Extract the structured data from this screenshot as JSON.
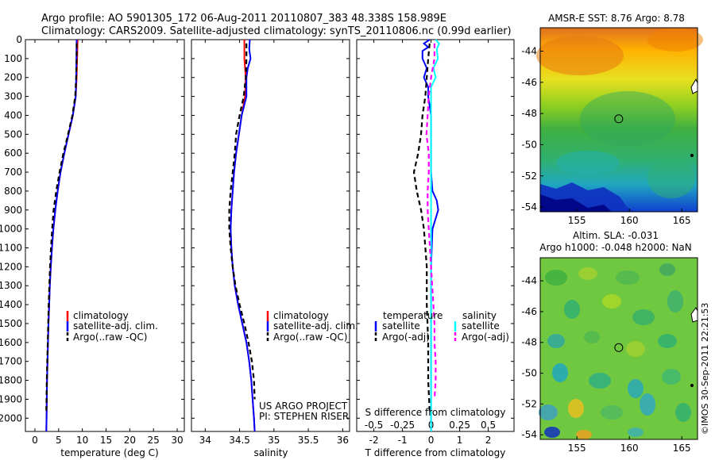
{
  "header": {
    "line1": "Argo profile: AO 5901305_172 06-Aug-2011 20110807_383 48.338S 158.989E",
    "line2": "Climatology: CARS2009. Satellite-adjusted climatology: synTS_20110806.nc (0.99d earlier)"
  },
  "footer": {
    "project": "US ARGO PROJECT",
    "pi": "PI: STEPHEN RISER",
    "credit": "©IMOS 30-Sep-2011 22:21:53"
  },
  "colors": {
    "climatology": "#ff0000",
    "satellite": "#0000ff",
    "argo": "#000000",
    "salinity_satellite": "#00ffff",
    "salinity_argo": "#ff00ff",
    "map_marker": "#000000"
  },
  "maps": [
    {
      "title": "AMSR-E SST: 8.76 Argo: 8.78",
      "title_line2": "",
      "y_ticks": [
        -44,
        -46,
        -48,
        -50,
        -52,
        -54
      ],
      "x_ticks": [
        155,
        160,
        165
      ],
      "lat_range": [
        -54.3,
        -42.5
      ],
      "lon_range": [
        151.5,
        166.5
      ],
      "argo_position": {
        "lon": 158.989,
        "lat": -48.338
      }
    },
    {
      "title": "Altim. SLA: -0.031",
      "title_line2": "Argo h1000: -0.048 h2000: NaN",
      "y_ticks": [
        -44,
        -46,
        -48,
        -50,
        -52,
        -54
      ],
      "x_ticks": [
        155,
        160,
        165
      ],
      "lat_range": [
        -54.3,
        -42.5
      ],
      "lon_range": [
        151.5,
        166.5
      ],
      "argo_position": {
        "lon": 158.989,
        "lat": -48.338
      }
    }
  ],
  "chart_data": [
    {
      "type": "line",
      "panel": "temperature",
      "xlabel": "temperature (deg C)",
      "ylabel": "",
      "xlim": [
        -2,
        31.5
      ],
      "ylim": [
        2070,
        0
      ],
      "x_ticks": [
        0,
        5,
        10,
        15,
        20,
        25,
        30
      ],
      "x_tick_labels": [
        "0",
        "5",
        "10",
        "15",
        "20",
        "25",
        "30"
      ],
      "y_ticks": [
        0,
        100,
        200,
        300,
        400,
        500,
        600,
        700,
        800,
        900,
        1000,
        1100,
        1200,
        1300,
        1400,
        1500,
        1600,
        1700,
        1800,
        1900,
        2000
      ],
      "y_tick_labels": [
        "0",
        "100",
        "200",
        "300",
        "400",
        "500",
        "600",
        "700",
        "800",
        "900",
        "1000",
        "1100",
        "1200",
        "1300",
        "1400",
        "1500",
        "1600",
        "1700",
        "1800",
        "1900",
        "2000"
      ],
      "legend": [
        "climatology",
        "satellite-adj. clim.",
        "Argo(..raw -QC)"
      ],
      "series": [
        {
          "name": "climatology",
          "color": "#ff0000",
          "dash": "solid",
          "depth": [
            0,
            100,
            200,
            300,
            400,
            500,
            600,
            700,
            800,
            900,
            1000,
            1100,
            1200,
            1300,
            1400,
            1500,
            1600,
            1700,
            1800,
            1900,
            2000,
            2070
          ],
          "values": [
            9.0,
            8.9,
            8.8,
            8.6,
            8.0,
            7.1,
            6.2,
            5.4,
            4.8,
            4.3,
            3.9,
            3.6,
            3.35,
            3.15,
            3.0,
            2.85,
            2.75,
            2.65,
            2.55,
            2.5,
            2.45,
            2.4
          ]
        },
        {
          "name": "satellite-adj. clim.",
          "color": "#0000ff",
          "dash": "solid",
          "depth": [
            0,
            100,
            200,
            300,
            400,
            500,
            600,
            700,
            800,
            900,
            1000,
            1100,
            1200,
            1300,
            1400,
            1500,
            1600,
            1700,
            1800,
            1900,
            2000,
            2070
          ],
          "values": [
            8.8,
            8.75,
            8.7,
            8.6,
            8.0,
            7.1,
            6.2,
            5.4,
            4.8,
            4.3,
            3.9,
            3.6,
            3.35,
            3.15,
            3.0,
            2.85,
            2.75,
            2.65,
            2.55,
            2.5,
            2.45,
            2.4
          ]
        },
        {
          "name": "Argo(..raw -QC)",
          "color": "#000000",
          "dash": "dashed",
          "depth": [
            20,
            100,
            200,
            300,
            400,
            500,
            600,
            700,
            800,
            900,
            1000,
            1100,
            1200,
            1300,
            1400,
            1500,
            1600,
            1700,
            1800,
            1900,
            1960
          ],
          "values": [
            8.8,
            8.8,
            8.7,
            8.5,
            7.9,
            7.0,
            6.0,
            5.2,
            4.5,
            3.95,
            3.65,
            3.4,
            3.2,
            3.05,
            2.9,
            2.8,
            2.7,
            2.6,
            2.5,
            2.45,
            2.4
          ]
        }
      ]
    },
    {
      "type": "line",
      "panel": "salinity",
      "xlabel": "salinity",
      "ylabel": "",
      "xlim": [
        33.8,
        36.1
      ],
      "ylim": [
        2070,
        0
      ],
      "x_ticks": [
        34,
        34.5,
        35,
        35.5,
        36
      ],
      "x_tick_labels": [
        "34",
        "34.5",
        "35",
        "35.5",
        "36"
      ],
      "legend": [
        "climatology",
        "satellite-adj. clim.",
        "Argo(..raw -QC)"
      ],
      "series": [
        {
          "name": "climatology",
          "color": "#ff0000",
          "dash": "solid",
          "depth": [
            0,
            100,
            200,
            300,
            400,
            500,
            600,
            700,
            800,
            900,
            1000,
            1100,
            1200,
            1300,
            1400,
            1500,
            1600,
            1700,
            1800,
            1900,
            2000,
            2070
          ],
          "values": [
            34.57,
            34.57,
            34.59,
            34.58,
            34.53,
            34.49,
            34.45,
            34.42,
            34.4,
            34.38,
            34.37,
            34.38,
            34.4,
            34.43,
            34.48,
            34.54,
            34.6,
            34.64,
            34.67,
            34.69,
            34.71,
            34.72
          ]
        },
        {
          "name": "satellite-adj. clim.",
          "color": "#0000ff",
          "dash": "solid",
          "depth": [
            0,
            50,
            100,
            150,
            200,
            300,
            400,
            500,
            600,
            700,
            800,
            900,
            1000,
            1100,
            1200,
            1300,
            1400,
            1500,
            1600,
            1700,
            1800,
            1900,
            2000,
            2070
          ],
          "values": [
            34.65,
            34.64,
            34.66,
            34.62,
            34.6,
            34.6,
            34.53,
            34.49,
            34.45,
            34.42,
            34.4,
            34.38,
            34.37,
            34.38,
            34.4,
            34.43,
            34.48,
            34.54,
            34.6,
            34.64,
            34.67,
            34.69,
            34.71,
            34.72
          ]
        },
        {
          "name": "Argo(..raw -QC)",
          "color": "#000000",
          "dash": "dashed",
          "depth": [
            20,
            100,
            200,
            300,
            400,
            500,
            600,
            700,
            800,
            900,
            1000,
            1100,
            1200,
            1300,
            1400,
            1500,
            1600,
            1700,
            1800,
            1900
          ],
          "values": [
            34.6,
            34.6,
            34.59,
            34.56,
            34.5,
            34.45,
            34.43,
            34.4,
            34.37,
            34.35,
            34.35,
            34.37,
            34.4,
            34.44,
            34.5,
            34.57,
            34.63,
            34.68,
            34.71,
            34.72
          ]
        }
      ]
    },
    {
      "type": "line",
      "panel": "difference",
      "xlabel": "T difference from climatology",
      "xlabel_top": "S difference from climatology",
      "xlim": [
        -2.6,
        2.9
      ],
      "ylim": [
        2070,
        0
      ],
      "x_ticks": [
        -2,
        -1,
        0,
        1,
        2
      ],
      "x_tick_labels": [
        "-2",
        "-1",
        "0",
        "1",
        "2"
      ],
      "s_ticks": [
        -0.5,
        -0.25,
        0,
        0.25,
        0.5
      ],
      "s_tick_labels": [
        "-0.5",
        "-0.25",
        "0",
        "0.25",
        "0.5"
      ],
      "s_scale": 4,
      "legend_temperature": {
        "heading": "temperature",
        "items": [
          "satellite",
          "Argo(-adj)"
        ]
      },
      "legend_salinity": {
        "heading": "salinity",
        "items": [
          "satellite",
          "Argo(-adj)"
        ]
      },
      "series": [
        {
          "name": "satellite",
          "group": "temperature",
          "color": "#0000ff",
          "dash": "solid",
          "depth": [
            0,
            20,
            40,
            60,
            100,
            150,
            200,
            250,
            300,
            400,
            500,
            600,
            700,
            800,
            850,
            900,
            950,
            1000,
            1200,
            1500,
            1800,
            2070
          ],
          "values": [
            -0.05,
            -0.25,
            -0.1,
            -0.3,
            -0.3,
            -0.15,
            -0.25,
            -0.1,
            -0.1,
            0.0,
            0.0,
            0.0,
            0.0,
            0.05,
            0.2,
            0.25,
            0.15,
            0.05,
            0.0,
            0.0,
            0.0,
            0.0
          ]
        },
        {
          "name": "Argo(-adj)",
          "group": "temperature",
          "color": "#000000",
          "dash": "dashed",
          "depth": [
            20,
            100,
            200,
            300,
            400,
            500,
            600,
            700,
            800,
            900,
            1000,
            1100,
            1200,
            1400,
            1600,
            1800,
            1960
          ],
          "values": [
            -0.05,
            -0.1,
            -0.15,
            -0.2,
            -0.3,
            -0.35,
            -0.45,
            -0.6,
            -0.5,
            -0.35,
            -0.25,
            -0.2,
            -0.15,
            -0.15,
            -0.1,
            -0.1,
            -0.05
          ]
        },
        {
          "name": "satellite",
          "group": "salinity",
          "color": "#00ffff",
          "dash": "solid",
          "depth": [
            0,
            20,
            50,
            100,
            150,
            200,
            250,
            300,
            400,
            600,
            800,
            1000,
            1200,
            1500,
            1800,
            2070
          ],
          "values": [
            0.04,
            0.07,
            0.05,
            0.06,
            0.02,
            0.04,
            0.0,
            0.0,
            0.0,
            0.0,
            0.0,
            0.0,
            0.0,
            0.0,
            0.0,
            0.0
          ]
        },
        {
          "name": "Argo(-adj)",
          "group": "salinity",
          "color": "#ff00ff",
          "dash": "dashed",
          "depth": [
            20,
            100,
            200,
            300,
            400,
            500,
            600,
            700,
            800,
            900,
            1000,
            1100,
            1200,
            1300,
            1400,
            1500,
            1600,
            1700,
            1800,
            1900
          ],
          "values": [
            0.03,
            0.03,
            0.0,
            -0.02,
            -0.03,
            -0.04,
            -0.02,
            -0.02,
            -0.03,
            -0.03,
            -0.02,
            -0.01,
            0.0,
            0.01,
            0.02,
            0.03,
            0.03,
            0.04,
            0.04,
            0.03
          ]
        }
      ]
    }
  ]
}
